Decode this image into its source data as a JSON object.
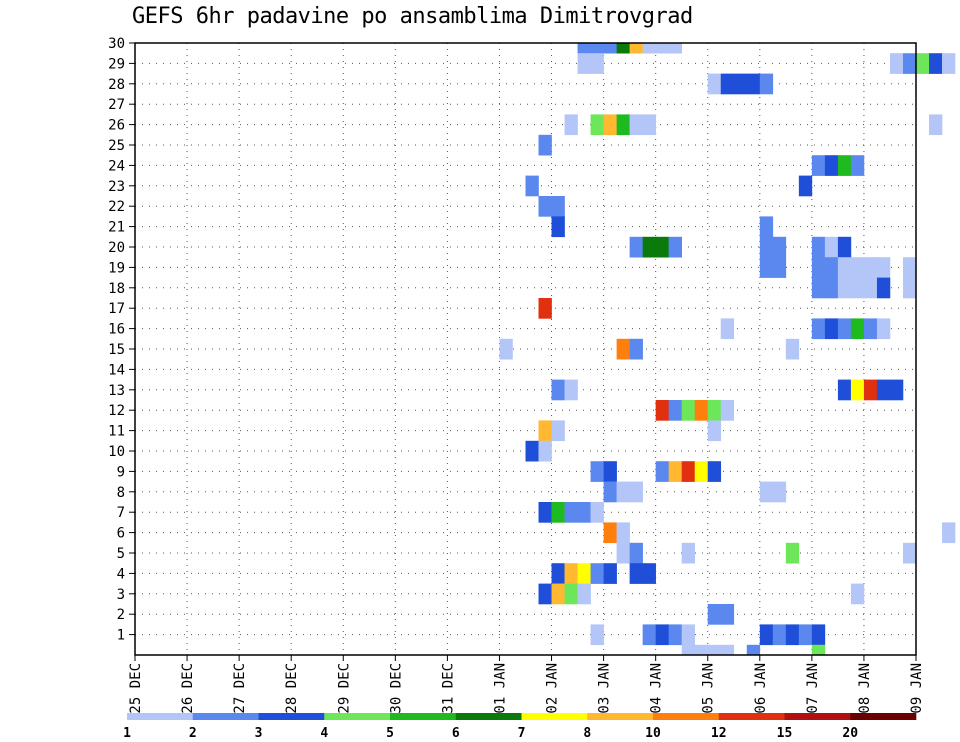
{
  "chart_data": {
    "type": "heatmap",
    "title": "GEFS 6hr padavine po ansamblima Dimitrovgrad",
    "x_tick_labels": [
      "25 DEC",
      "26 DEC",
      "27 DEC",
      "28 DEC",
      "29 DEC",
      "30 DEC",
      "31 DEC",
      "01 JAN",
      "02 JAN",
      "03 JAN",
      "04 JAN",
      "05 JAN",
      "06 JAN",
      "07 JAN",
      "08 JAN",
      "09 JAN"
    ],
    "y_tick_labels": [
      "1",
      "2",
      "3",
      "4",
      "5",
      "6",
      "7",
      "8",
      "9",
      "10",
      "11",
      "12",
      "13",
      "14",
      "15",
      "16",
      "17",
      "18",
      "19",
      "20",
      "21",
      "22",
      "23",
      "24",
      "25",
      "26",
      "27",
      "28",
      "29",
      "30"
    ],
    "x_range_days": [
      0,
      15
    ],
    "y_range_members": [
      0,
      30
    ],
    "steps_per_day": 4,
    "grid": "dotted",
    "legend": {
      "placement": "bottom",
      "labels": [
        "1",
        "2",
        "3",
        "4",
        "5",
        "6",
        "7",
        "8",
        "10",
        "12",
        "15",
        "20"
      ],
      "colors": [
        "#b3c6f7",
        "#5b88ee",
        "#1f4fd8",
        "#6ee65a",
        "#1fba1f",
        "#0a7a0a",
        "#ffff00",
        "#ffb830",
        "#ff7f0e",
        "#e0300f",
        "#b01010",
        "#6b0000"
      ]
    },
    "cells": [
      [
        30,
        8.5,
        2
      ],
      [
        30,
        8.75,
        2
      ],
      [
        30,
        9.0,
        2
      ],
      [
        30,
        9.25,
        6
      ],
      [
        30,
        9.5,
        8
      ],
      [
        30,
        9.75,
        1
      ],
      [
        30,
        10.0,
        1
      ],
      [
        30,
        10.25,
        1
      ],
      [
        29,
        8.5,
        1
      ],
      [
        29,
        8.75,
        1
      ],
      [
        29,
        14.5,
        1
      ],
      [
        29,
        14.75,
        2
      ],
      [
        29,
        15.0,
        4
      ],
      [
        29,
        15.25,
        3
      ],
      [
        29,
        15.5,
        1
      ],
      [
        28,
        11.0,
        1
      ],
      [
        28,
        11.25,
        3
      ],
      [
        28,
        11.5,
        3
      ],
      [
        28,
        11.75,
        3
      ],
      [
        28,
        12.0,
        2
      ],
      [
        26,
        8.25,
        1
      ],
      [
        26,
        8.75,
        4
      ],
      [
        26,
        9.0,
        8
      ],
      [
        26,
        9.25,
        5
      ],
      [
        26,
        9.5,
        1
      ],
      [
        26,
        9.75,
        1
      ],
      [
        26,
        15.25,
        1
      ],
      [
        25,
        7.75,
        2
      ],
      [
        24,
        13.0,
        2
      ],
      [
        24,
        13.25,
        3
      ],
      [
        24,
        13.5,
        5
      ],
      [
        24,
        13.75,
        2
      ],
      [
        23,
        12.75,
        3
      ],
      [
        23,
        7.5,
        2
      ],
      [
        22,
        7.75,
        2
      ],
      [
        22,
        8.0,
        2
      ],
      [
        21,
        8.0,
        3
      ],
      [
        21,
        12.0,
        2
      ],
      [
        20,
        9.5,
        2
      ],
      [
        20,
        9.75,
        6
      ],
      [
        20,
        10.0,
        6
      ],
      [
        20,
        10.25,
        2
      ],
      [
        20,
        12.0,
        2
      ],
      [
        20,
        12.25,
        2
      ],
      [
        20,
        13.0,
        2
      ],
      [
        20,
        13.25,
        1
      ],
      [
        20,
        13.5,
        3
      ],
      [
        19,
        12.0,
        2
      ],
      [
        19,
        12.25,
        2
      ],
      [
        19,
        13.0,
        2
      ],
      [
        19,
        13.25,
        2
      ],
      [
        19,
        13.5,
        1
      ],
      [
        19,
        13.75,
        1
      ],
      [
        19,
        14.0,
        1
      ],
      [
        19,
        14.25,
        1
      ],
      [
        19,
        14.75,
        1
      ],
      [
        18,
        13.0,
        2
      ],
      [
        18,
        13.25,
        2
      ],
      [
        18,
        13.5,
        1
      ],
      [
        18,
        13.75,
        1
      ],
      [
        18,
        14.0,
        1
      ],
      [
        18,
        14.25,
        3
      ],
      [
        18,
        14.75,
        1
      ],
      [
        17,
        7.75,
        10
      ],
      [
        16,
        11.25,
        1
      ],
      [
        16,
        13.0,
        2
      ],
      [
        16,
        13.25,
        3
      ],
      [
        16,
        13.5,
        2
      ],
      [
        16,
        13.75,
        5
      ],
      [
        16,
        14.0,
        2
      ],
      [
        16,
        14.25,
        1
      ],
      [
        15,
        7.0,
        1
      ],
      [
        15,
        9.25,
        9
      ],
      [
        15,
        9.5,
        2
      ],
      [
        15,
        12.5,
        1
      ],
      [
        13,
        8.0,
        2
      ],
      [
        13,
        8.25,
        1
      ],
      [
        13,
        13.5,
        3
      ],
      [
        13,
        13.75,
        7
      ],
      [
        13,
        14.0,
        10
      ],
      [
        13,
        14.25,
        3
      ],
      [
        13,
        14.5,
        3
      ],
      [
        12,
        10.0,
        10
      ],
      [
        12,
        10.25,
        2
      ],
      [
        12,
        10.5,
        4
      ],
      [
        12,
        10.75,
        9
      ],
      [
        12,
        11.0,
        4
      ],
      [
        12,
        11.25,
        1
      ],
      [
        11,
        7.75,
        8
      ],
      [
        11,
        8.0,
        1
      ],
      [
        11,
        11.0,
        1
      ],
      [
        10,
        7.5,
        3
      ],
      [
        10,
        7.75,
        1
      ],
      [
        9,
        8.75,
        2
      ],
      [
        9,
        9.0,
        3
      ],
      [
        9,
        10.0,
        2
      ],
      [
        9,
        10.25,
        8
      ],
      [
        9,
        10.5,
        10
      ],
      [
        9,
        10.75,
        7
      ],
      [
        9,
        11.0,
        3
      ],
      [
        8,
        9.0,
        2
      ],
      [
        8,
        9.25,
        1
      ],
      [
        8,
        9.5,
        1
      ],
      [
        8,
        12.0,
        1
      ],
      [
        8,
        12.25,
        1
      ],
      [
        7,
        7.75,
        3
      ],
      [
        7,
        8.0,
        5
      ],
      [
        7,
        8.25,
        2
      ],
      [
        7,
        8.5,
        2
      ],
      [
        7,
        8.75,
        1
      ],
      [
        6,
        9.0,
        9
      ],
      [
        6,
        9.25,
        1
      ],
      [
        6,
        15.5,
        1
      ],
      [
        5,
        9.25,
        1
      ],
      [
        5,
        9.5,
        2
      ],
      [
        5,
        10.5,
        1
      ],
      [
        5,
        12.5,
        4
      ],
      [
        5,
        14.75,
        1
      ],
      [
        4,
        8.0,
        3
      ],
      [
        4,
        8.25,
        8
      ],
      [
        4,
        8.5,
        7
      ],
      [
        4,
        8.75,
        2
      ],
      [
        4,
        9.0,
        3
      ],
      [
        4,
        9.5,
        3
      ],
      [
        4,
        9.75,
        3
      ],
      [
        3,
        7.75,
        3
      ],
      [
        3,
        8.0,
        8
      ],
      [
        3,
        8.25,
        4
      ],
      [
        3,
        8.5,
        1
      ],
      [
        3,
        13.75,
        1
      ],
      [
        2,
        11.0,
        2
      ],
      [
        2,
        11.25,
        2
      ],
      [
        1,
        8.75,
        1
      ],
      [
        1,
        9.75,
        2
      ],
      [
        1,
        10.0,
        3
      ],
      [
        1,
        10.25,
        2
      ],
      [
        1,
        10.5,
        1
      ],
      [
        1,
        12.0,
        3
      ],
      [
        1,
        12.25,
        2
      ],
      [
        1,
        12.5,
        3
      ],
      [
        1,
        12.75,
        2
      ],
      [
        1,
        13.0,
        3
      ],
      [
        0,
        10.5,
        1
      ],
      [
        0,
        10.75,
        1
      ],
      [
        0,
        11.0,
        1
      ],
      [
        0,
        11.25,
        1
      ],
      [
        0,
        11.75,
        2
      ],
      [
        0,
        13.0,
        4
      ]
    ]
  }
}
